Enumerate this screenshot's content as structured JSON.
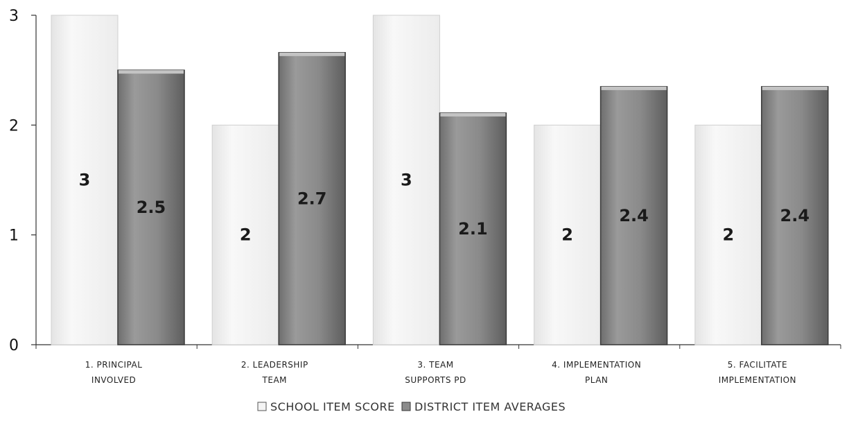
{
  "chart_data": {
    "type": "bar",
    "categories": [
      [
        "1. Principal",
        "involved"
      ],
      [
        "2. Leadership",
        "team"
      ],
      [
        "3. Team",
        "supports PD"
      ],
      [
        "4. Implementation",
        "plan"
      ],
      [
        "5. Facilitate",
        "implementation"
      ]
    ],
    "series": [
      {
        "name": "School Item Score",
        "values": [
          3,
          2,
          3,
          2,
          2
        ],
        "labels": [
          "3",
          "2",
          "3",
          "2",
          "2"
        ],
        "color": "#f4f4f4"
      },
      {
        "name": "District Item Averages",
        "values": [
          2.5,
          2.66,
          2.11,
          2.35,
          2.35
        ],
        "labels": [
          "2.5",
          "2.7",
          "2.1",
          "2.4",
          "2.4"
        ],
        "color": "#8c8c8c"
      }
    ],
    "y_ticks": [
      "0",
      "1",
      "2",
      "3"
    ],
    "ylim": [
      0,
      3
    ],
    "legend": "bottom",
    "grid": false
  }
}
